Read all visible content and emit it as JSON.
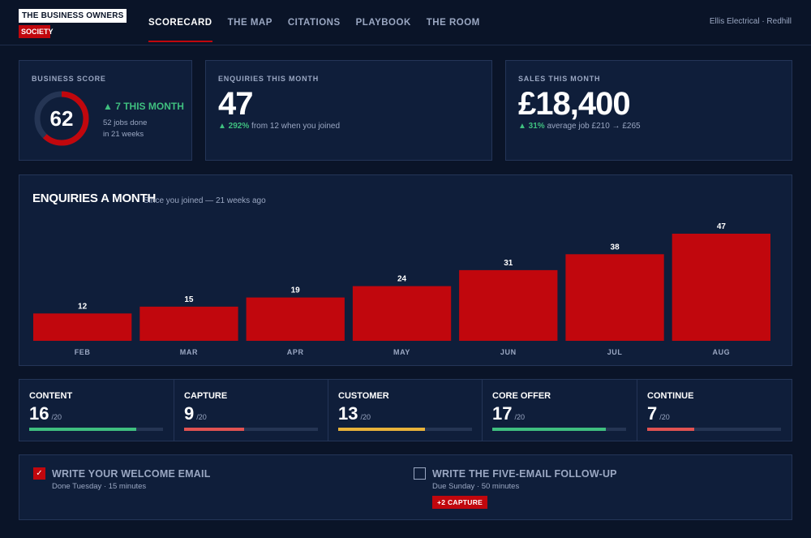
{
  "brand": {
    "line1": "THE BUSINESS OWNERS",
    "line2": "SOCIETY"
  },
  "nav": [
    {
      "label": "SCORECARD",
      "active": true
    },
    {
      "label": "THE MAP",
      "active": false
    },
    {
      "label": "CITATIONS",
      "active": false
    },
    {
      "label": "PLAYBOOK",
      "active": false
    },
    {
      "label": "THE ROOM",
      "active": false
    }
  ],
  "business_name": "Ellis Electrical · Redhill",
  "score": {
    "label": "BUSINESS SCORE",
    "value": "62",
    "percent": 62,
    "change": "▲ 7 THIS MONTH",
    "line1": "52 jobs done",
    "line2": "in 21 weeks"
  },
  "enquiries": {
    "label": "ENQUIRIES THIS MONTH",
    "value": "47",
    "change": "▲ 292%",
    "note": "from 12 when you joined"
  },
  "sales": {
    "label": "SALES THIS MONTH",
    "value": "£18,400",
    "change": "▲ 31%",
    "note": "average job £210 → £265"
  },
  "chart": {
    "title": "ENQUIRIES A MONTH",
    "subtitle": "Since you joined — 21 weeks ago"
  },
  "chart_data": {
    "type": "bar",
    "title": "ENQUIRIES A MONTH",
    "subtitle": "Since you joined — 21 weeks ago",
    "categories": [
      "FEB",
      "MAR",
      "APR",
      "MAY",
      "JUN",
      "JUL",
      "AUG"
    ],
    "values": [
      12,
      15,
      19,
      24,
      31,
      38,
      47
    ],
    "ylim": [
      0,
      47
    ],
    "bar_color": "#c1070d",
    "grid": false
  },
  "pillars": [
    {
      "name": "CONTENT",
      "score": "16",
      "max": "/20",
      "fraction": 0.8,
      "color": "#3fbf7f"
    },
    {
      "name": "CAPTURE",
      "score": "9",
      "max": "/20",
      "fraction": 0.45,
      "color": "#e05252"
    },
    {
      "name": "CUSTOMER",
      "score": "13",
      "max": "/20",
      "fraction": 0.65,
      "color": "#e8b23a"
    },
    {
      "name": "CORE OFFER",
      "score": "17",
      "max": "/20",
      "fraction": 0.85,
      "color": "#3fbf7f"
    },
    {
      "name": "CONTINUE",
      "score": "7",
      "max": "/20",
      "fraction": 0.35,
      "color": "#e05252"
    }
  ],
  "tasks": [
    {
      "title": "WRITE YOUR WELCOME EMAIL",
      "meta": "Done Tuesday · 15 minutes",
      "done": true,
      "check": "✓"
    },
    {
      "title": "WRITE THE FIVE-EMAIL FOLLOW-UP",
      "meta": "Due Sunday · 50 minutes",
      "done": false,
      "badge": "+2 CAPTURE"
    }
  ],
  "colors": {
    "background": "#0a1428",
    "card": "#0f1e3a",
    "accent": "#c1070d",
    "positive": "#3fbf7f"
  }
}
